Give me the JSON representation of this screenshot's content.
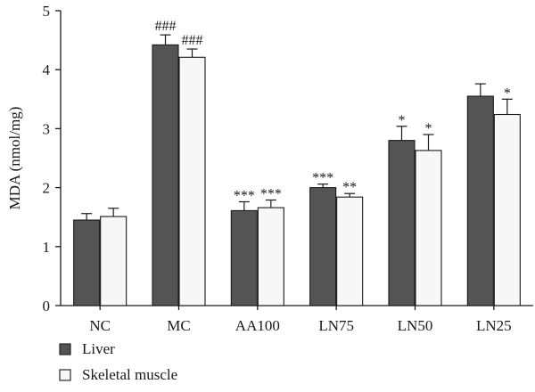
{
  "chart_data": {
    "type": "bar",
    "categories": [
      "NC",
      "MC",
      "AA100",
      "LN75",
      "LN50",
      "LN25"
    ],
    "series": [
      {
        "name": "Liver",
        "color": "#545454",
        "values": [
          1.45,
          4.42,
          1.61,
          2.0,
          2.8,
          3.55
        ],
        "errors": [
          0.11,
          0.17,
          0.15,
          0.06,
          0.24,
          0.21
        ],
        "annotations": [
          "",
          "###",
          "***",
          "***",
          "*",
          ""
        ]
      },
      {
        "name": "Skeletal muscle",
        "color": "#f7f7f7",
        "values": [
          1.51,
          4.21,
          1.66,
          1.84,
          2.63,
          3.24
        ],
        "errors": [
          0.14,
          0.14,
          0.13,
          0.06,
          0.27,
          0.26
        ],
        "annotations": [
          "",
          "###",
          "***",
          "**",
          "*",
          "*"
        ]
      }
    ],
    "title": "",
    "xlabel": "",
    "ylabel": "MDA (nmol/mg)",
    "ylim": [
      0,
      5
    ],
    "yticks": [
      "0",
      "1",
      "2",
      "3",
      "4",
      "5"
    ],
    "grid": false,
    "legend": "bottom-left"
  }
}
